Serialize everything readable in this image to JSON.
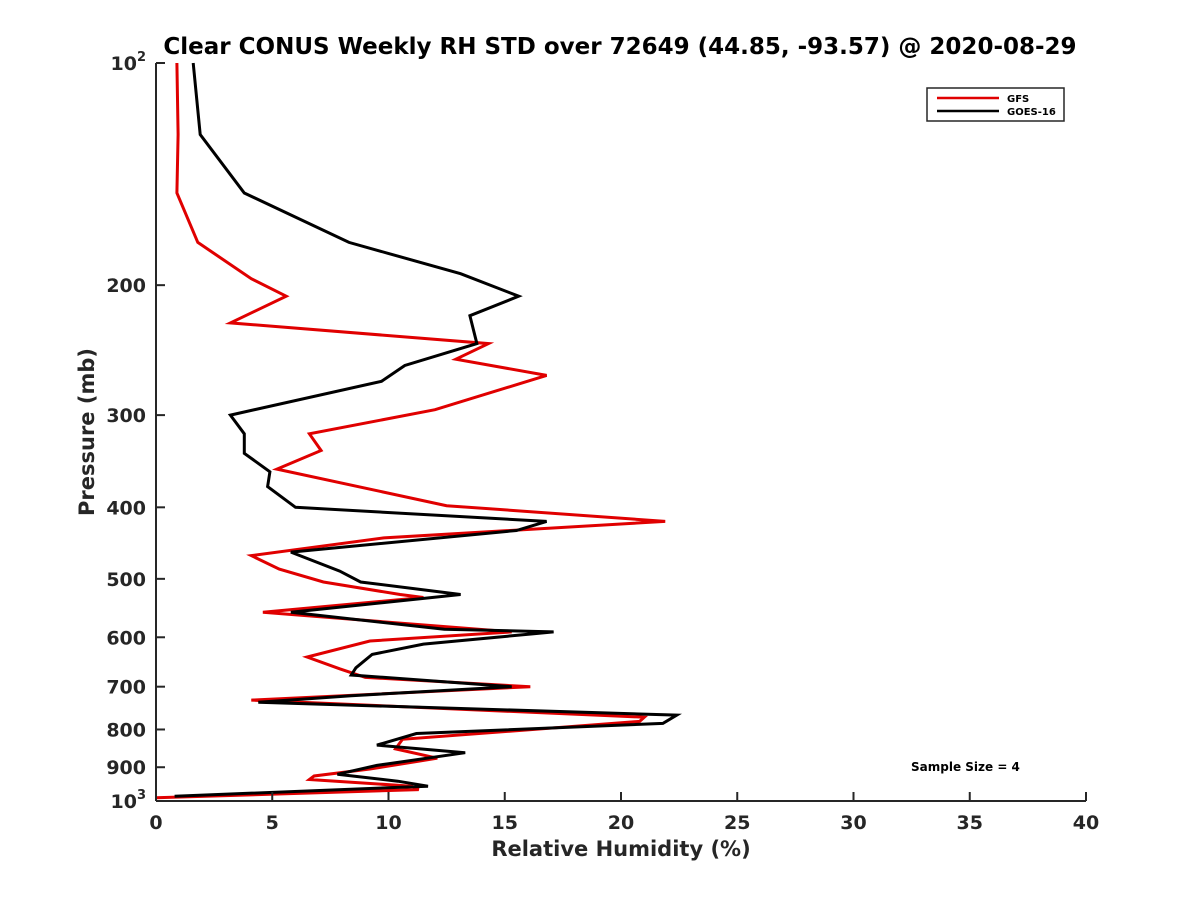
{
  "chart_data": {
    "type": "line",
    "title": "Clear CONUS Weekly RH STD over 72649 (44.85, -93.57) @ 2020-08-29",
    "xlabel": "Relative Humidity (%)",
    "ylabel": "Pressure (mb)",
    "xlim": [
      0,
      40
    ],
    "ylim": [
      100,
      1000
    ],
    "yscale": "log",
    "y_reversed": true,
    "xticks": [
      0,
      5,
      10,
      15,
      20,
      25,
      30,
      35,
      40
    ],
    "yticks": [
      {
        "value": 100,
        "label": "10",
        "sup": "2"
      },
      {
        "value": 200,
        "label": "200",
        "sup": ""
      },
      {
        "value": 300,
        "label": "300",
        "sup": ""
      },
      {
        "value": 400,
        "label": "400",
        "sup": ""
      },
      {
        "value": 500,
        "label": "500",
        "sup": ""
      },
      {
        "value": 600,
        "label": "600",
        "sup": ""
      },
      {
        "value": 700,
        "label": "700",
        "sup": ""
      },
      {
        "value": 800,
        "label": "800",
        "sup": ""
      },
      {
        "value": 900,
        "label": "900",
        "sup": ""
      },
      {
        "value": 1000,
        "label": "10",
        "sup": "3"
      }
    ],
    "grid": false,
    "legend_position": "top-right",
    "annotation": "Sample Size = 4",
    "series": [
      {
        "name": "GFS",
        "color": "#e00000",
        "points": [
          [
            0.9,
            100
          ],
          [
            0.95,
            125
          ],
          [
            0.9,
            150
          ],
          [
            1.8,
            175
          ],
          [
            4.1,
            196
          ],
          [
            5.6,
            207
          ],
          [
            3.2,
            225
          ],
          [
            14.3,
            240
          ],
          [
            12.9,
            252
          ],
          [
            16.8,
            265
          ],
          [
            12.0,
            295
          ],
          [
            6.6,
            318
          ],
          [
            7.1,
            335
          ],
          [
            5.2,
            355
          ],
          [
            12.5,
            398
          ],
          [
            21.9,
            418
          ],
          [
            9.8,
            440
          ],
          [
            4.1,
            465
          ],
          [
            5.3,
            485
          ],
          [
            7.2,
            505
          ],
          [
            10.5,
            525
          ],
          [
            11.5,
            530
          ],
          [
            4.6,
            555
          ],
          [
            15.3,
            590
          ],
          [
            9.2,
            607
          ],
          [
            6.5,
            638
          ],
          [
            7.9,
            662
          ],
          [
            9.0,
            680
          ],
          [
            16.1,
            700
          ],
          [
            4.1,
            730
          ],
          [
            21.0,
            770
          ],
          [
            20.8,
            780
          ],
          [
            10.6,
            825
          ],
          [
            10.3,
            850
          ],
          [
            12.1,
            875
          ],
          [
            9.2,
            905
          ],
          [
            6.8,
            925
          ],
          [
            6.6,
            935
          ],
          [
            11.0,
            955
          ],
          [
            11.3,
            965
          ],
          [
            0.0,
            990
          ]
        ]
      },
      {
        "name": "GOES-16",
        "color": "#000000",
        "points": [
          [
            1.6,
            100
          ],
          [
            1.9,
            125
          ],
          [
            3.8,
            150
          ],
          [
            8.3,
            175
          ],
          [
            13.1,
            193
          ],
          [
            15.6,
            207
          ],
          [
            13.5,
            220
          ],
          [
            13.8,
            240
          ],
          [
            10.7,
            257
          ],
          [
            9.7,
            270
          ],
          [
            3.2,
            300
          ],
          [
            3.8,
            318
          ],
          [
            3.8,
            338
          ],
          [
            4.9,
            358
          ],
          [
            4.8,
            375
          ],
          [
            6.0,
            400
          ],
          [
            16.8,
            418
          ],
          [
            15.5,
            430
          ],
          [
            5.8,
            460
          ],
          [
            7.9,
            488
          ],
          [
            8.8,
            505
          ],
          [
            13.1,
            525
          ],
          [
            5.8,
            555
          ],
          [
            12.4,
            585
          ],
          [
            17.1,
            590
          ],
          [
            11.5,
            613
          ],
          [
            9.3,
            633
          ],
          [
            8.6,
            660
          ],
          [
            8.4,
            675
          ],
          [
            15.3,
            700
          ],
          [
            8.4,
            720
          ],
          [
            4.4,
            735
          ],
          [
            22.4,
            765
          ],
          [
            21.8,
            785
          ],
          [
            11.2,
            810
          ],
          [
            9.5,
            840
          ],
          [
            13.3,
            860
          ],
          [
            9.5,
            895
          ],
          [
            7.8,
            920
          ],
          [
            10.4,
            940
          ],
          [
            11.7,
            955
          ],
          [
            0.8,
            985
          ]
        ]
      }
    ]
  }
}
